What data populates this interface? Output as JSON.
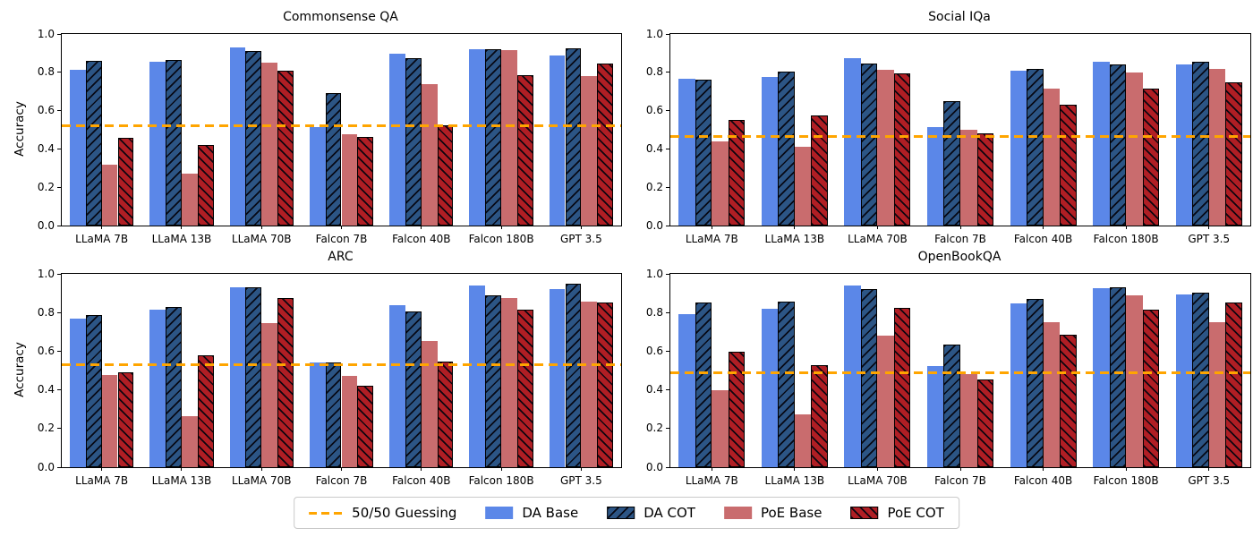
{
  "figure": {
    "background": "#ffffff"
  },
  "legend": {
    "border_color": "#c9c9c9",
    "items": [
      {
        "label": "50/50 Guessing",
        "swatch": "dashed-line",
        "color": "#FFA500",
        "hatch": "none"
      },
      {
        "label": "DA Base",
        "swatch": "patch",
        "color": "#5b87e8",
        "hatch": "none"
      },
      {
        "label": "DA COT",
        "swatch": "patch",
        "color": "#2c5585",
        "hatch": "/"
      },
      {
        "label": "PoE Base",
        "swatch": "patch",
        "color": "#c96c6e",
        "hatch": "none"
      },
      {
        "label": "PoE COT",
        "swatch": "patch",
        "color": "#b01e24",
        "hatch": "\\"
      }
    ]
  },
  "chart_data": [
    {
      "type": "bar",
      "title": "Commonsense QA",
      "ylabel": "Accuracy",
      "ylim": [
        0.0,
        1.0
      ],
      "ytick_labels": [
        "0.0",
        "0.2",
        "0.4",
        "0.6",
        "0.8",
        "1.0"
      ],
      "grid": false,
      "categories": [
        "LLaMA 7B",
        "LLaMA 13B",
        "LLaMA 70B",
        "Falcon 7B",
        "Falcon 40B",
        "Falcon 180B",
        "GPT 3.5"
      ],
      "baseline": {
        "label": "50/50 Guessing",
        "value": 0.52,
        "color": "#FFA500"
      },
      "series": [
        {
          "name": "DA Base",
          "color": "#5b87e8",
          "hatch": "none",
          "values": [
            0.815,
            0.855,
            0.93,
            0.515,
            0.895,
            0.92,
            0.89
          ]
        },
        {
          "name": "DA COT",
          "color": "#2c5585",
          "hatch": "/",
          "values": [
            0.86,
            0.865,
            0.91,
            0.69,
            0.875,
            0.92,
            0.925
          ]
        },
        {
          "name": "PoE Base",
          "color": "#c96c6e",
          "hatch": "none",
          "values": [
            0.32,
            0.27,
            0.85,
            0.475,
            0.74,
            0.915,
            0.78
          ]
        },
        {
          "name": "PoE COT",
          "color": "#b01e24",
          "hatch": "\\",
          "values": [
            0.46,
            0.42,
            0.81,
            0.465,
            0.525,
            0.785,
            0.845
          ]
        }
      ]
    },
    {
      "type": "bar",
      "title": "Social IQa",
      "ylabel": "",
      "ylim": [
        0.0,
        1.0
      ],
      "ytick_labels": [
        "0.0",
        "0.2",
        "0.4",
        "0.6",
        "0.8",
        "1.0"
      ],
      "grid": false,
      "categories": [
        "LLaMA 7B",
        "LLaMA 13B",
        "LLaMA 70B",
        "Falcon 7B",
        "Falcon 40B",
        "Falcon 180B",
        "GPT 3.5"
      ],
      "baseline": {
        "label": "50/50 Guessing",
        "value": 0.465,
        "color": "#FFA500"
      },
      "series": [
        {
          "name": "DA Base",
          "color": "#5b87e8",
          "hatch": "none",
          "values": [
            0.765,
            0.775,
            0.875,
            0.515,
            0.81,
            0.855,
            0.84
          ]
        },
        {
          "name": "DA COT",
          "color": "#2c5585",
          "hatch": "/",
          "values": [
            0.76,
            0.805,
            0.845,
            0.65,
            0.82,
            0.84,
            0.855
          ]
        },
        {
          "name": "PoE Base",
          "color": "#c96c6e",
          "hatch": "none",
          "values": [
            0.44,
            0.41,
            0.815,
            0.5,
            0.715,
            0.8,
            0.82
          ]
        },
        {
          "name": "PoE COT",
          "color": "#b01e24",
          "hatch": "\\",
          "values": [
            0.55,
            0.575,
            0.795,
            0.48,
            0.63,
            0.715,
            0.75
          ]
        }
      ]
    },
    {
      "type": "bar",
      "title": "ARC",
      "ylabel": "Accuracy",
      "ylim": [
        0.0,
        1.0
      ],
      "ytick_labels": [
        "0.0",
        "0.2",
        "0.4",
        "0.6",
        "0.8",
        "1.0"
      ],
      "grid": false,
      "categories": [
        "LLaMA 7B",
        "LLaMA 13B",
        "LLaMA 70B",
        "Falcon 7B",
        "Falcon 40B",
        "Falcon 180B",
        "GPT 3.5"
      ],
      "baseline": {
        "label": "50/50 Guessing",
        "value": 0.53,
        "color": "#FFA500"
      },
      "series": [
        {
          "name": "DA Base",
          "color": "#5b87e8",
          "hatch": "none",
          "values": [
            0.77,
            0.815,
            0.93,
            0.54,
            0.84,
            0.94,
            0.92
          ]
        },
        {
          "name": "DA COT",
          "color": "#2c5585",
          "hatch": "/",
          "values": [
            0.785,
            0.83,
            0.93,
            0.54,
            0.805,
            0.89,
            0.95
          ]
        },
        {
          "name": "PoE Base",
          "color": "#c96c6e",
          "hatch": "none",
          "values": [
            0.475,
            0.265,
            0.745,
            0.47,
            0.655,
            0.875,
            0.855
          ]
        },
        {
          "name": "PoE COT",
          "color": "#b01e24",
          "hatch": "\\",
          "values": [
            0.49,
            0.58,
            0.875,
            0.42,
            0.545,
            0.815,
            0.85
          ]
        }
      ]
    },
    {
      "type": "bar",
      "title": "OpenBookQA",
      "ylabel": "",
      "ylim": [
        0.0,
        1.0
      ],
      "ytick_labels": [
        "0.0",
        "0.2",
        "0.4",
        "0.6",
        "0.8",
        "1.0"
      ],
      "grid": false,
      "categories": [
        "LLaMA 7B",
        "LLaMA 13B",
        "LLaMA 70B",
        "Falcon 7B",
        "Falcon 40B",
        "Falcon 180B",
        "GPT 3.5"
      ],
      "baseline": {
        "label": "50/50 Guessing",
        "value": 0.49,
        "color": "#FFA500"
      },
      "series": [
        {
          "name": "DA Base",
          "color": "#5b87e8",
          "hatch": "none",
          "values": [
            0.79,
            0.82,
            0.94,
            0.525,
            0.845,
            0.925,
            0.895
          ]
        },
        {
          "name": "DA COT",
          "color": "#2c5585",
          "hatch": "/",
          "values": [
            0.85,
            0.855,
            0.92,
            0.635,
            0.87,
            0.93,
            0.905
          ]
        },
        {
          "name": "PoE Base",
          "color": "#c96c6e",
          "hatch": "none",
          "values": [
            0.4,
            0.275,
            0.68,
            0.48,
            0.75,
            0.89,
            0.75
          ]
        },
        {
          "name": "PoE COT",
          "color": "#b01e24",
          "hatch": "\\",
          "values": [
            0.595,
            0.53,
            0.825,
            0.455,
            0.685,
            0.815,
            0.85
          ]
        }
      ]
    }
  ]
}
